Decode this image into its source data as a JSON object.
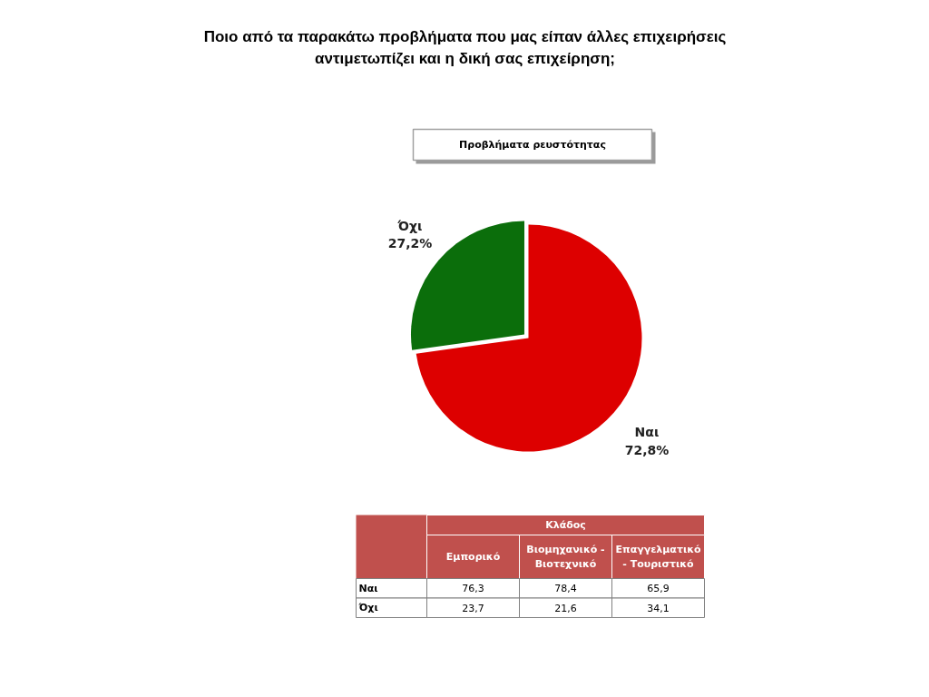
{
  "chart_data": [
    {
      "type": "pie",
      "title": "Ποιο από τα παρακάτω προβλήματα που μας είπαν άλλες επιχειρήσεις αντιμετωπίζει και η δική σας επιχείρηση;",
      "subtitle": "Προβλήματα ρευστότητας",
      "categories": [
        "Ναι",
        "Όχι"
      ],
      "values": [
        72.8,
        27.2
      ],
      "colors": [
        "#dd0000",
        "#0b6e0b"
      ],
      "value_labels": [
        "72,8%",
        "27,2%"
      ]
    },
    {
      "type": "other",
      "title": "Κλάδος",
      "categories": [
        "Εμπορικό",
        "Βιομηχανικό - Βιοτεχνικό",
        "Επαγγελματικό - Τουριστικό"
      ],
      "y_categories": [
        "Ναι",
        "Όχι"
      ],
      "cell_labels": [
        [
          "76,3",
          "78,4",
          "65,9"
        ],
        [
          "23,7",
          "21,6",
          "34,1"
        ]
      ],
      "color": "#c0504d"
    }
  ]
}
